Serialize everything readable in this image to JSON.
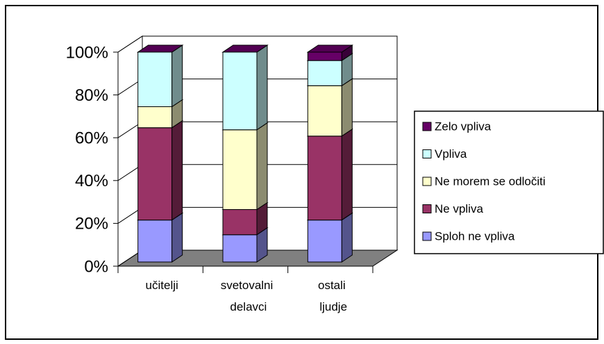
{
  "chart_data": {
    "type": "bar",
    "stacked": true,
    "categories": [
      "učitelji",
      "svetovalni delavci",
      "ostali ljudje"
    ],
    "series": [
      {
        "name": "Sploh ne vpliva",
        "color": "#9999ff",
        "values": [
          20,
          13,
          20
        ]
      },
      {
        "name": "Ne vpliva",
        "color": "#993366",
        "values": [
          44,
          12,
          40
        ]
      },
      {
        "name": "Ne morem se odločiti",
        "color": "#ffffcc",
        "values": [
          10,
          38,
          24
        ]
      },
      {
        "name": "Vpliva",
        "color": "#ccffff",
        "values": [
          26,
          37,
          12
        ]
      },
      {
        "name": "Zelo vpliva",
        "color": "#660066",
        "values": [
          0,
          0,
          4
        ]
      }
    ],
    "ylim": [
      0,
      100
    ],
    "yticks": [
      {
        "value": 0,
        "label": "0%"
      },
      {
        "value": 20,
        "label": "20%"
      },
      {
        "value": 40,
        "label": "40%"
      },
      {
        "value": 60,
        "label": "60%"
      },
      {
        "value": 80,
        "label": "80%"
      },
      {
        "value": 100,
        "label": "100%"
      }
    ],
    "grid": true,
    "legend": "right"
  }
}
